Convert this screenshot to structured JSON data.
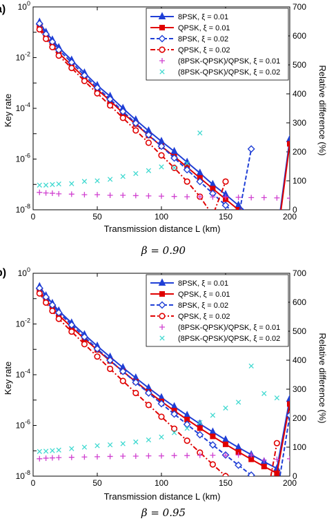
{
  "chart_data": [
    {
      "type": "line",
      "panel_label": "a)",
      "caption": "β = 0.90",
      "xlabel": "Transmission distance  L (km)",
      "ylabel_left": "Key rate",
      "ylabel_right": "Relative difference (%)",
      "xlim": [
        0,
        200
      ],
      "xticks": [
        "0",
        "50",
        "100",
        "150",
        "200"
      ],
      "ylim_left_log10": [
        -8,
        0
      ],
      "yticks_left": [
        {
          "base": "10",
          "exp": "0"
        },
        {
          "base": "10",
          "exp": "-2"
        },
        {
          "base": "10",
          "exp": "-4"
        },
        {
          "base": "10",
          "exp": "-6"
        },
        {
          "base": "10",
          "exp": "-8"
        }
      ],
      "ylim_right": [
        0,
        700
      ],
      "yticks_right": [
        "0",
        "100",
        "200",
        "300",
        "400",
        "500",
        "600",
        "700"
      ],
      "y_scale_left": "log",
      "legend_position": "top-right",
      "series": [
        {
          "name": "8PSK, ξ = 0.01",
          "axis": "left",
          "color": "#1f3fd6",
          "marker": "triangle",
          "dash": "solid",
          "x": [
            5,
            10,
            15,
            20,
            30,
            40,
            50,
            60,
            70,
            80,
            90,
            100,
            110,
            120,
            130,
            140,
            150,
            160,
            170,
            180,
            190,
            200
          ],
          "y": [
            0.25,
            0.1,
            0.05,
            0.025,
            0.008,
            0.0025,
            0.0008,
            0.0003,
            0.0001,
            3.5e-05,
            1.3e-05,
            5e-06,
            2e-06,
            7.5e-07,
            2.8e-07,
            1e-07,
            4e-08,
            1.5e-08,
            5.5e-09,
            2e-09,
            9e-10,
            6e-06
          ]
        },
        {
          "name": "QPSK, ξ = 0.01",
          "axis": "left",
          "color": "#e00000",
          "marker": "square",
          "dash": "solid",
          "x": [
            5,
            10,
            15,
            20,
            30,
            40,
            50,
            60,
            70,
            80,
            90,
            100,
            110,
            120,
            130,
            140,
            150,
            160,
            170,
            180,
            190,
            200
          ],
          "y": [
            0.16,
            0.07,
            0.032,
            0.015,
            0.005,
            0.0016,
            0.00055,
            0.0002,
            6.5e-05,
            2.4e-05,
            8.5e-06,
            3.2e-06,
            1.25e-06,
            4.8e-07,
            1.8e-07,
            6.8e-08,
            2.6e-08,
            1e-08,
            3.9e-09,
            1.5e-09,
            6e-10,
            4e-06
          ]
        },
        {
          "name": "8PSK, ξ = 0.02",
          "axis": "left",
          "color": "#1f3fd6",
          "marker": "diamond",
          "dash": "dash",
          "x": [
            5,
            10,
            15,
            20,
            30,
            40,
            50,
            60,
            70,
            80,
            90,
            100,
            110,
            120,
            130,
            140,
            150,
            160,
            170
          ],
          "y": [
            0.22,
            0.085,
            0.042,
            0.02,
            0.0065,
            0.002,
            0.00065,
            0.00023,
            7.5e-05,
            2.6e-05,
            9e-06,
            3.2e-06,
            1.1e-06,
            3.8e-07,
            1.3e-07,
            4.4e-08,
            1.5e-08,
            5e-09,
            2.5e-06
          ]
        },
        {
          "name": "QPSK, ξ = 0.02",
          "axis": "left",
          "color": "#e00000",
          "marker": "circle",
          "dash": "dashdot",
          "x": [
            5,
            10,
            15,
            20,
            30,
            40,
            50,
            60,
            70,
            80,
            90,
            100,
            110,
            120,
            130,
            140,
            150
          ],
          "y": [
            0.13,
            0.055,
            0.026,
            0.012,
            0.0039,
            0.0012,
            0.00039,
            0.00013,
            4.2e-05,
            1.35e-05,
            4.4e-06,
            1.4e-06,
            4.5e-07,
            1.3e-07,
            3.3e-08,
            6e-09,
            1.3e-07
          ]
        },
        {
          "name": "(8PSK-QPSK)/QPSK, ξ = 0.01",
          "axis": "right",
          "color": "#d040d0",
          "marker": "plus",
          "dash": "none",
          "x": [
            5,
            10,
            15,
            20,
            30,
            40,
            50,
            60,
            70,
            80,
            90,
            100,
            110,
            120,
            130,
            140,
            150,
            160,
            170,
            180,
            190,
            200
          ],
          "y": [
            60,
            58,
            57,
            55,
            54,
            52,
            52,
            50,
            50,
            49,
            48,
            47,
            46,
            45,
            45,
            44,
            44,
            43,
            42,
            42,
            41,
            40
          ]
        },
        {
          "name": "(8PSK-QPSK)/QPSK, ξ = 0.02",
          "axis": "right",
          "color": "#3fd9d0",
          "marker": "x",
          "dash": "none",
          "x": [
            5,
            10,
            15,
            20,
            30,
            40,
            50,
            60,
            70,
            80,
            90,
            100,
            110,
            120,
            130
          ],
          "y": [
            85,
            85,
            87,
            89,
            90,
            98,
            100,
            105,
            115,
            125,
            135,
            148,
            145,
            160,
            265
          ]
        }
      ]
    },
    {
      "type": "line",
      "panel_label": "b)",
      "caption": "β = 0.95",
      "xlabel": "Transmission distance  L (km)",
      "ylabel_left": "Key rate",
      "ylabel_right": "Relative difference (%)",
      "xlim": [
        0,
        200
      ],
      "xticks": [
        "0",
        "50",
        "100",
        "150",
        "200"
      ],
      "ylim_left_log10": [
        -8,
        0
      ],
      "yticks_left": [
        {
          "base": "10",
          "exp": "0"
        },
        {
          "base": "10",
          "exp": "-2"
        },
        {
          "base": "10",
          "exp": "-4"
        },
        {
          "base": "10",
          "exp": "-6"
        },
        {
          "base": "10",
          "exp": "-8"
        }
      ],
      "ylim_right": [
        0,
        700
      ],
      "yticks_right": [
        "0",
        "100",
        "200",
        "300",
        "400",
        "500",
        "600",
        "700"
      ],
      "y_scale_left": "log",
      "legend_position": "top-right",
      "series": [
        {
          "name": "8PSK, ξ = 0.01",
          "axis": "left",
          "color": "#1f3fd6",
          "marker": "triangle",
          "dash": "solid",
          "x": [
            5,
            10,
            15,
            20,
            30,
            40,
            50,
            60,
            70,
            80,
            90,
            100,
            110,
            120,
            130,
            140,
            150,
            160,
            170,
            180,
            190,
            200
          ],
          "y": [
            0.3,
            0.13,
            0.065,
            0.033,
            0.011,
            0.0038,
            0.00135,
            0.0005,
            0.00019,
            7.5e-05,
            3e-05,
            1.25e-05,
            5.5e-06,
            2.5e-06,
            1.15e-06,
            5.5e-07,
            2.7e-07,
            1.35e-07,
            7e-08,
            3.7e-08,
            2e-08,
            1.1e-05
          ]
        },
        {
          "name": "QPSK, ξ = 0.01",
          "axis": "left",
          "color": "#e00000",
          "marker": "square",
          "dash": "solid",
          "x": [
            5,
            10,
            15,
            20,
            30,
            40,
            50,
            60,
            70,
            80,
            90,
            100,
            110,
            120,
            130,
            140,
            150,
            160,
            170,
            180,
            190,
            200
          ],
          "y": [
            0.2,
            0.09,
            0.045,
            0.022,
            0.0075,
            0.0026,
            0.00095,
            0.00035,
            0.000135,
            5.3e-05,
            2.1e-05,
            8.8e-06,
            3.8e-06,
            1.7e-06,
            7.8e-07,
            3.7e-07,
            1.8e-07,
            9e-08,
            4.6e-08,
            2.4e-08,
            1.3e-08,
            7e-06
          ]
        },
        {
          "name": "8PSK, ξ = 0.02",
          "axis": "left",
          "color": "#1f3fd6",
          "marker": "diamond",
          "dash": "dash",
          "x": [
            5,
            10,
            15,
            20,
            30,
            40,
            50,
            60,
            70,
            80,
            90,
            100,
            110,
            120,
            130,
            140,
            150,
            160,
            170,
            180,
            190,
            200
          ],
          "y": [
            0.26,
            0.115,
            0.056,
            0.028,
            0.0092,
            0.0031,
            0.00105,
            0.00037,
            0.000135,
            5e-05,
            1.9e-05,
            7.2e-06,
            2.8e-06,
            1.1e-06,
            4.3e-07,
            1.7e-07,
            6.8e-08,
            2.7e-08,
            1.1e-08,
            4.5e-09,
            1.8e-09,
            2.5e-06
          ]
        },
        {
          "name": "QPSK, ξ = 0.02",
          "axis": "left",
          "color": "#e00000",
          "marker": "circle",
          "dash": "dashdot",
          "x": [
            5,
            10,
            15,
            20,
            30,
            40,
            50,
            60,
            70,
            80,
            90,
            100,
            110,
            120,
            130,
            140,
            150,
            160,
            170,
            180,
            190
          ],
          "y": [
            0.16,
            0.07,
            0.033,
            0.016,
            0.005,
            0.0016,
            0.00052,
            0.00017,
            5.7e-05,
            1.9e-05,
            6.4e-06,
            2.2e-06,
            7.4e-07,
            2.5e-07,
            8.5e-08,
            2.9e-08,
            1e-08,
            3.4e-09,
            1.1e-09,
            3.5e-10,
            2e-07
          ]
        },
        {
          "name": "(8PSK-QPSK)/QPSK, ξ = 0.01",
          "axis": "right",
          "color": "#d040d0",
          "marker": "plus",
          "dash": "none",
          "x": [
            5,
            10,
            15,
            20,
            30,
            40,
            50,
            60,
            70,
            80,
            90,
            100,
            110,
            120,
            130,
            140,
            150,
            160,
            170,
            180,
            190,
            200
          ],
          "y": [
            60,
            62,
            63,
            64,
            65,
            66,
            67,
            68,
            69,
            69,
            70,
            70,
            71,
            71,
            72,
            72,
            72,
            73,
            73,
            55,
            58,
            60
          ]
        },
        {
          "name": "(8PSK-QPSK)/QPSK, ξ = 0.02",
          "axis": "right",
          "color": "#3fd9d0",
          "marker": "x",
          "dash": "none",
          "x": [
            5,
            10,
            15,
            20,
            30,
            40,
            50,
            60,
            70,
            80,
            90,
            100,
            110,
            120,
            130,
            140,
            150,
            160,
            170,
            180,
            190
          ],
          "y": [
            85,
            86,
            88,
            90,
            95,
            100,
            105,
            108,
            112,
            118,
            125,
            135,
            150,
            165,
            185,
            210,
            235,
            255,
            380,
            285,
            270
          ]
        }
      ]
    }
  ]
}
